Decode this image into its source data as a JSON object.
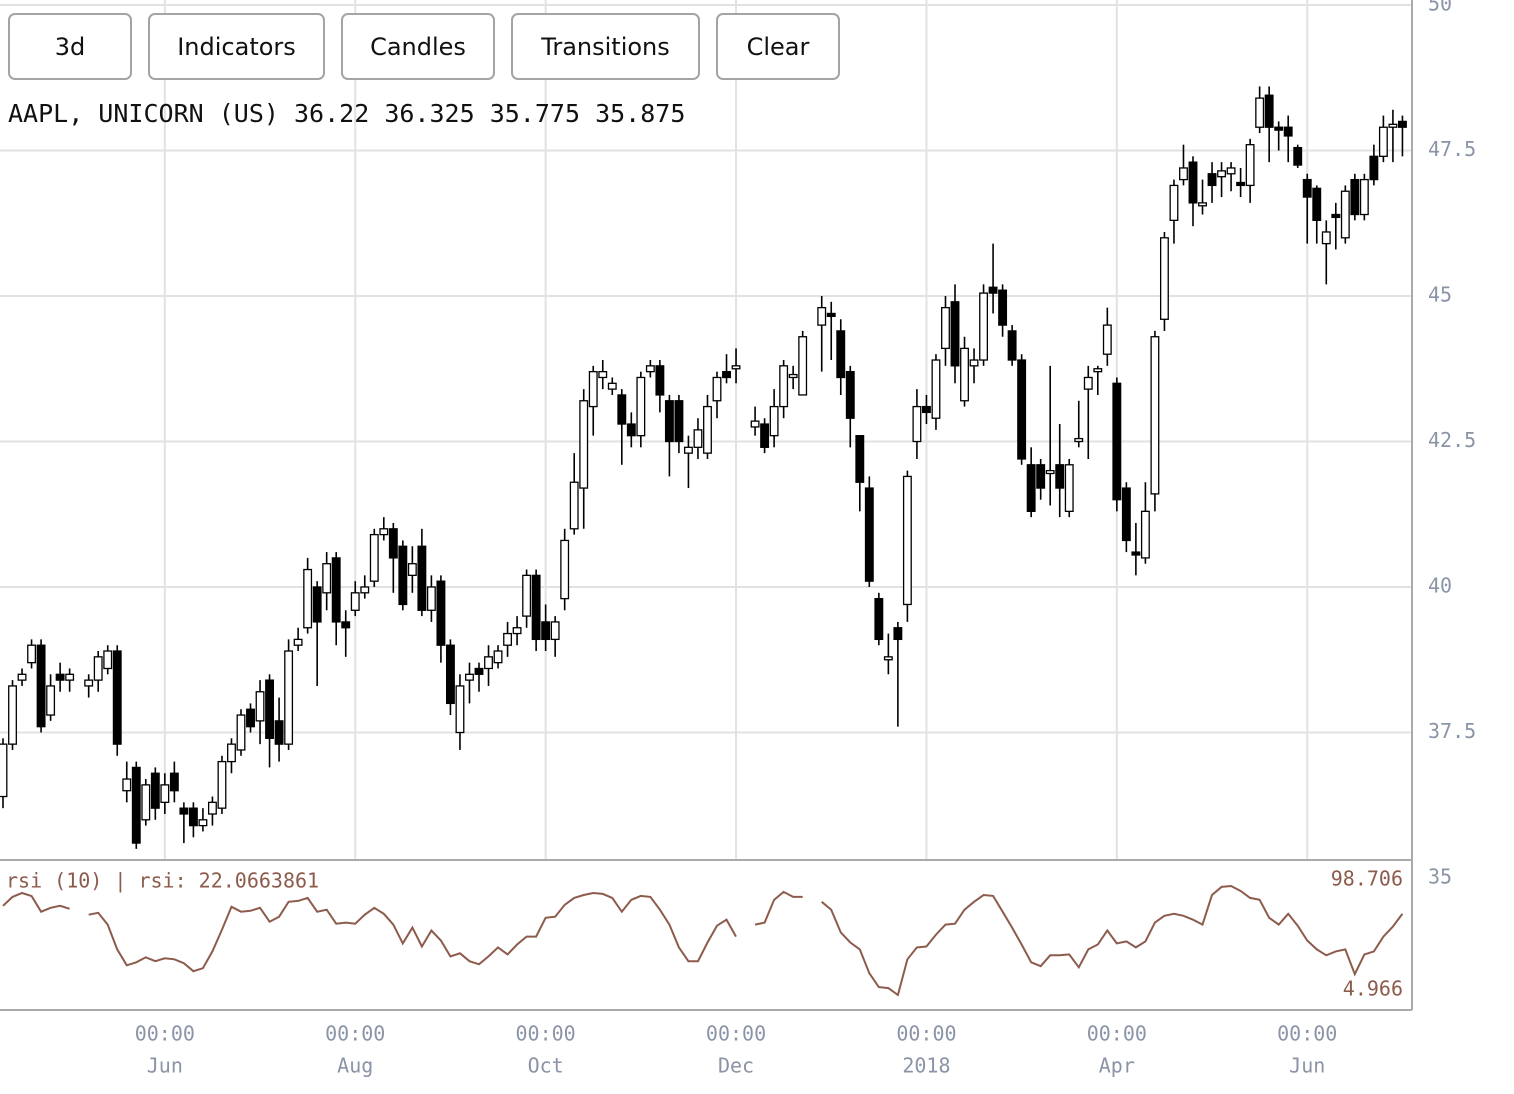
{
  "buttons": [
    "3d",
    "Indicators",
    "Candles",
    "Transitions",
    "Clear"
  ],
  "chart_data": [
    {
      "type": "candlestick",
      "symbol": "AAPL, UNICORN (US)",
      "ohlc": [
        36.22,
        36.325,
        35.775,
        35.875
      ],
      "ylim": [
        35,
        50
      ],
      "yticks": [
        35,
        37.5,
        40,
        42.5,
        45,
        47.5,
        50
      ],
      "xticks": [
        {
          "value": 17,
          "time": "00:00",
          "label": "Jun"
        },
        {
          "value": 37,
          "time": "00:00",
          "label": "Aug"
        },
        {
          "value": 57,
          "time": "00:00",
          "label": "Oct"
        },
        {
          "value": 77,
          "time": "00:00",
          "label": "Dec"
        },
        {
          "value": 97,
          "time": "00:00",
          "label": "2018"
        },
        {
          "value": 117,
          "time": "00:00",
          "label": "Apr"
        },
        {
          "value": 137,
          "time": "00:00",
          "label": "Jun"
        }
      ],
      "grid": true,
      "up_color": "#ffffff",
      "down_color": "#000000",
      "open": [
        36.4,
        37.3,
        38.4,
        38.7,
        39.0,
        37.8,
        38.5,
        38.4,
        null,
        38.3,
        38.4,
        38.6,
        38.9,
        36.5,
        36.9,
        36.0,
        36.8,
        36.3,
        36.8,
        36.2,
        36.2,
        35.9,
        36.1,
        36.2,
        37.0,
        37.2,
        37.9,
        37.7,
        38.4,
        37.7,
        37.3,
        39.0,
        39.3,
        40.0,
        39.9,
        40.5,
        39.4,
        39.6,
        39.9,
        40.1,
        40.9,
        41.0,
        40.7,
        40.2,
        40.7,
        39.6,
        40.1,
        39.0,
        37.5,
        38.4,
        38.6,
        38.6,
        38.7,
        39.0,
        39.2,
        39.5,
        40.2,
        39.4,
        39.1,
        39.8,
        41.0,
        41.7,
        43.1,
        43.6,
        43.4,
        43.3,
        42.8,
        42.6,
        43.7,
        43.8,
        43.2,
        43.2,
        42.3,
        42.4,
        42.3,
        43.2,
        43.7,
        43.75,
        null,
        42.75,
        42.8,
        42.6,
        43.1,
        43.6,
        43.3,
        null,
        44.5,
        44.7,
        44.4,
        43.7,
        42.6,
        41.7,
        39.8,
        38.75,
        39.3,
        39.7,
        42.5,
        43.1,
        42.9,
        44.1,
        44.9,
        43.2,
        43.8,
        43.9,
        45.15,
        45.1,
        44.4,
        43.9,
        42.1,
        42.1,
        41.95,
        42.1,
        41.3,
        42.5,
        43.4,
        43.7,
        44.0,
        43.5,
        41.7,
        40.6,
        40.5,
        41.6,
        44.6,
        46.3,
        47.0,
        47.3,
        46.55,
        47.1,
        47.05,
        47.1,
        46.95,
        46.9,
        47.9,
        48.45,
        47.9,
        47.9,
        47.55,
        47.0,
        46.85,
        45.9,
        46.4,
        46.0,
        47.0,
        46.4,
        47.4,
        47.4,
        47.9,
        48.0
      ],
      "high": [
        37.4,
        38.4,
        38.6,
        39.1,
        39.1,
        38.5,
        38.7,
        38.6,
        null,
        38.5,
        38.9,
        39.0,
        39.0,
        37.0,
        37.0,
        36.7,
        36.9,
        36.8,
        37.0,
        36.3,
        36.3,
        36.2,
        36.4,
        37.1,
        37.4,
        37.9,
        38.0,
        38.4,
        38.5,
        38.1,
        39.1,
        39.3,
        40.5,
        40.1,
        40.6,
        40.6,
        39.6,
        40.1,
        40.2,
        41.0,
        41.2,
        41.1,
        40.8,
        40.7,
        41.0,
        40.2,
        40.2,
        39.1,
        38.5,
        38.7,
        38.7,
        39.0,
        39.0,
        39.4,
        39.5,
        40.3,
        40.3,
        39.7,
        39.5,
        41.0,
        42.3,
        43.4,
        43.8,
        43.9,
        43.6,
        43.4,
        43.0,
        43.7,
        43.9,
        43.9,
        43.3,
        43.3,
        42.6,
        42.9,
        43.3,
        43.7,
        44.0,
        44.1,
        null,
        43.1,
        42.9,
        43.4,
        43.9,
        43.8,
        44.4,
        null,
        45.0,
        44.9,
        44.6,
        43.8,
        42.6,
        41.9,
        39.9,
        39.2,
        39.4,
        42.0,
        43.4,
        43.3,
        44.0,
        45.0,
        45.2,
        44.3,
        44.1,
        45.2,
        45.9,
        45.2,
        44.5,
        44.0,
        42.4,
        42.2,
        43.8,
        42.8,
        42.2,
        43.2,
        43.8,
        43.8,
        44.8,
        43.6,
        41.8,
        41.1,
        41.8,
        44.4,
        46.1,
        47.0,
        47.6,
        47.4,
        47.0,
        47.3,
        47.3,
        47.3,
        47.2,
        47.7,
        48.6,
        48.6,
        48.0,
        48.1,
        47.6,
        47.1,
        46.9,
        46.3,
        46.6,
        46.9,
        47.1,
        47.1,
        47.6,
        48.1,
        48.2,
        48.1
      ],
      "low": [
        36.2,
        37.2,
        38.3,
        38.6,
        37.5,
        37.7,
        38.2,
        38.2,
        null,
        38.1,
        38.2,
        38.5,
        37.1,
        36.3,
        35.5,
        35.9,
        36.0,
        36.1,
        36.3,
        35.6,
        35.7,
        35.8,
        35.9,
        36.1,
        36.8,
        37.1,
        37.5,
        37.3,
        36.9,
        37.0,
        37.2,
        38.9,
        39.2,
        38.3,
        39.6,
        39.0,
        38.8,
        39.5,
        39.8,
        40.0,
        40.8,
        39.9,
        39.6,
        39.9,
        39.5,
        39.4,
        38.7,
        37.8,
        37.2,
        38.0,
        38.2,
        38.3,
        38.6,
        38.8,
        39.0,
        39.3,
        38.9,
        38.9,
        38.8,
        39.6,
        40.9,
        41.0,
        42.6,
        43.4,
        43.3,
        42.1,
        42.4,
        42.4,
        43.6,
        43.0,
        41.9,
        42.3,
        41.7,
        42.2,
        42.2,
        42.9,
        43.5,
        43.5,
        null,
        42.6,
        42.3,
        42.4,
        42.9,
        43.4,
        43.3,
        null,
        43.7,
        43.9,
        43.3,
        42.4,
        41.3,
        40.0,
        39.0,
        38.5,
        37.6,
        39.4,
        42.2,
        42.8,
        42.7,
        43.8,
        43.5,
        43.1,
        43.5,
        43.8,
        44.7,
        44.3,
        43.8,
        42.1,
        41.2,
        41.5,
        41.4,
        41.2,
        41.2,
        42.4,
        42.2,
        43.3,
        43.8,
        41.3,
        40.6,
        40.2,
        40.4,
        41.3,
        44.4,
        45.9,
        46.9,
        46.2,
        46.4,
        46.6,
        46.7,
        46.8,
        46.7,
        46.6,
        47.8,
        47.3,
        47.5,
        47.3,
        47.2,
        45.9,
        45.9,
        45.2,
        45.8,
        45.9,
        46.3,
        46.3,
        46.9,
        47.3,
        47.3,
        47.4
      ],
      "close": [
        37.3,
        38.3,
        38.5,
        39.0,
        37.6,
        38.3,
        38.4,
        38.5,
        null,
        38.4,
        38.8,
        38.9,
        37.3,
        36.7,
        35.6,
        36.6,
        36.2,
        36.6,
        36.5,
        36.1,
        35.9,
        36.0,
        36.3,
        37.0,
        37.3,
        37.8,
        37.6,
        38.2,
        37.4,
        37.3,
        38.9,
        39.1,
        40.3,
        39.4,
        40.4,
        39.4,
        39.3,
        39.9,
        40.0,
        40.9,
        41.0,
        40.5,
        39.7,
        40.4,
        39.6,
        40.0,
        39.0,
        38.0,
        38.3,
        38.5,
        38.5,
        38.8,
        38.9,
        39.2,
        39.3,
        40.2,
        39.1,
        39.1,
        39.4,
        40.8,
        41.8,
        43.2,
        43.7,
        43.7,
        43.5,
        42.8,
        42.6,
        43.6,
        43.8,
        43.3,
        42.5,
        42.5,
        42.4,
        42.7,
        43.1,
        43.6,
        43.6,
        43.8,
        null,
        42.85,
        42.4,
        43.1,
        43.8,
        43.65,
        44.3,
        null,
        44.8,
        44.65,
        43.6,
        42.9,
        41.8,
        40.1,
        39.1,
        38.8,
        39.1,
        41.9,
        43.1,
        43.0,
        43.9,
        44.8,
        43.8,
        44.1,
        43.9,
        45.05,
        45.05,
        44.5,
        43.9,
        42.2,
        41.3,
        41.7,
        42.0,
        41.7,
        42.1,
        42.55,
        43.6,
        43.75,
        44.5,
        41.5,
        40.8,
        40.55,
        41.3,
        44.3,
        46.0,
        46.9,
        47.2,
        46.6,
        46.6,
        46.9,
        47.15,
        47.2,
        46.9,
        47.6,
        48.4,
        47.9,
        47.85,
        47.75,
        47.25,
        46.7,
        46.3,
        46.1,
        46.35,
        46.8,
        46.4,
        47.0,
        47.0,
        47.9,
        47.95,
        47.9
      ]
    },
    {
      "type": "line",
      "title": "rsi (10) | rsi: 22.0663861",
      "color": "#8d5b4c",
      "ylim": [
        4.966,
        98.706
      ],
      "values": [
        81.7,
        89.3,
        92.7,
        90,
        76.6,
        80,
        81.7,
        79.1,
        null,
        74,
        75.7,
        65.5,
        44.2,
        30.5,
        33.1,
        37.4,
        34,
        36.5,
        35.7,
        32.3,
        25.4,
        28,
        42.5,
        61.2,
        80.8,
        76.6,
        77.4,
        80,
        68,
        72.3,
        85.1,
        85.9,
        88.5,
        76.6,
        78.3,
        66.3,
        67.2,
        66.3,
        74,
        80,
        74.8,
        65.5,
        49.3,
        62.9,
        46.7,
        60.4,
        51.8,
        38.2,
        40.8,
        34,
        31.4,
        38.2,
        45.9,
        39.9,
        48.4,
        55.2,
        55.2,
        71.4,
        72.3,
        82.5,
        88.5,
        91,
        92.7,
        91.9,
        88.5,
        76.6,
        86.8,
        90.2,
        89.3,
        78.3,
        65.5,
        45.9,
        34,
        34,
        50.1,
        64.6,
        69.7,
        55.2,
        null,
        65.5,
        67.2,
        86.8,
        93.6,
        89.3,
        89.3,
        null,
        85.1,
        78.3,
        58.7,
        50.1,
        44.2,
        23.7,
        11.8,
        10.9,
        4.966,
        35.7,
        45.9,
        46.7,
        56.9,
        65.5,
        66.3,
        78.3,
        85.1,
        91,
        90.2,
        76.6,
        62.9,
        48.4,
        33.1,
        29.7,
        39.1,
        39.1,
        39.9,
        28.8,
        44.2,
        48.4,
        60.4,
        49.3,
        51.1,
        45.9,
        51.1,
        67.2,
        73.1,
        74.8,
        73.1,
        69.7,
        65.5,
        91,
        97.9,
        98.706,
        94.4,
        88.5,
        86.8,
        71.4,
        65.5,
        74.8,
        64.6,
        51.8,
        44.2,
        39.1,
        42.5,
        44.2,
        22.9,
        39.9,
        42.5,
        55.2,
        63.8,
        74.8
      ]
    }
  ]
}
